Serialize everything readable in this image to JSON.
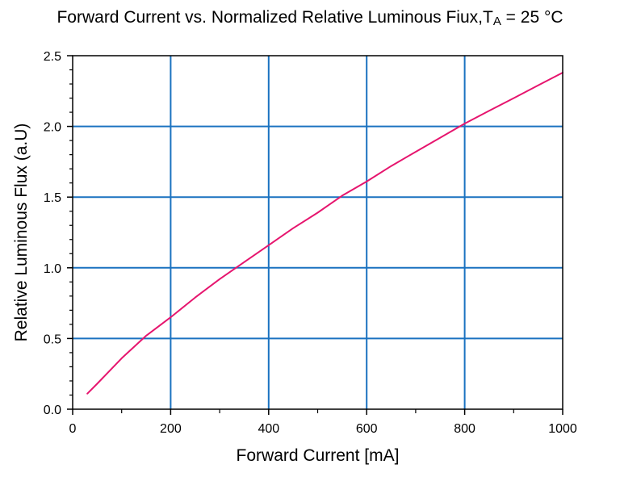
{
  "chart_data": {
    "type": "line",
    "title_main": "Forward Current vs. Normalized Relative Luminous Fiux,T",
    "title_sub": "A",
    "title_suffix": " = 25 °C",
    "xlabel": "Forward Current [mA]",
    "ylabel": "Relative Luminous Flux (a.U)",
    "xlim": [
      0,
      1000
    ],
    "ylim": [
      0,
      2.5
    ],
    "x_ticks": [
      "0",
      "200",
      "400",
      "600",
      "800",
      "1000"
    ],
    "y_ticks": [
      "0.0",
      "0.5",
      "1.0",
      "1.5",
      "2.0",
      "2.5"
    ],
    "grid": true,
    "series": [
      {
        "color": "#e6156e",
        "x": [
          30,
          50,
          100,
          150,
          200,
          250,
          300,
          350,
          400,
          450,
          500,
          550,
          600,
          650,
          700,
          750,
          800,
          850,
          900,
          950,
          1000
        ],
        "y": [
          0.11,
          0.18,
          0.36,
          0.52,
          0.65,
          0.79,
          0.92,
          1.04,
          1.16,
          1.28,
          1.39,
          1.51,
          1.61,
          1.72,
          1.82,
          1.92,
          2.02,
          2.11,
          2.2,
          2.29,
          2.38
        ]
      }
    ],
    "colors": {
      "grid": "#1a72c0",
      "axis": "#000000"
    }
  }
}
